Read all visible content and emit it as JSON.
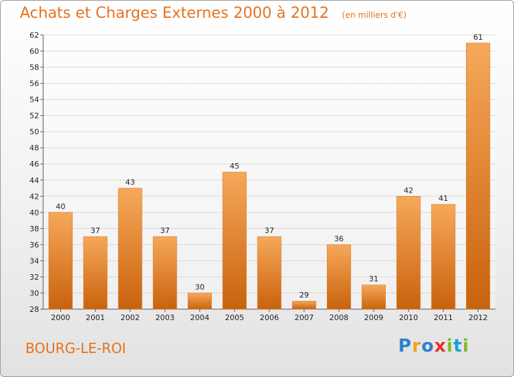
{
  "header": {
    "title": "Achats et Charges Externes 2000 à 2012",
    "subtitle": "(en milliers d'€)"
  },
  "footer": {
    "place": "BOURG-LE-ROI",
    "brand_parts": [
      "P",
      "r",
      "o",
      "x",
      "i",
      "t",
      "i"
    ]
  },
  "colors": {
    "bar_light": "#f6a85a",
    "bar_dark": "#c9620d",
    "title": "#e6721f",
    "grid": "#d8d8d8"
  },
  "chart_data": {
    "type": "bar",
    "categories": [
      "2000",
      "2001",
      "2002",
      "2003",
      "2004",
      "2005",
      "2006",
      "2007",
      "2008",
      "2009",
      "2010",
      "2011",
      "2012"
    ],
    "values": [
      40,
      37,
      43,
      37,
      30,
      45,
      37,
      29,
      36,
      31,
      42,
      41,
      61
    ],
    "title": "Achats et Charges Externes 2000 à 2012",
    "ylim": [
      28,
      62
    ],
    "yticks": [
      28,
      30,
      32,
      34,
      36,
      38,
      40,
      42,
      44,
      46,
      48,
      50,
      52,
      54,
      56,
      58,
      60,
      62
    ],
    "grid": true,
    "legend": "none"
  }
}
